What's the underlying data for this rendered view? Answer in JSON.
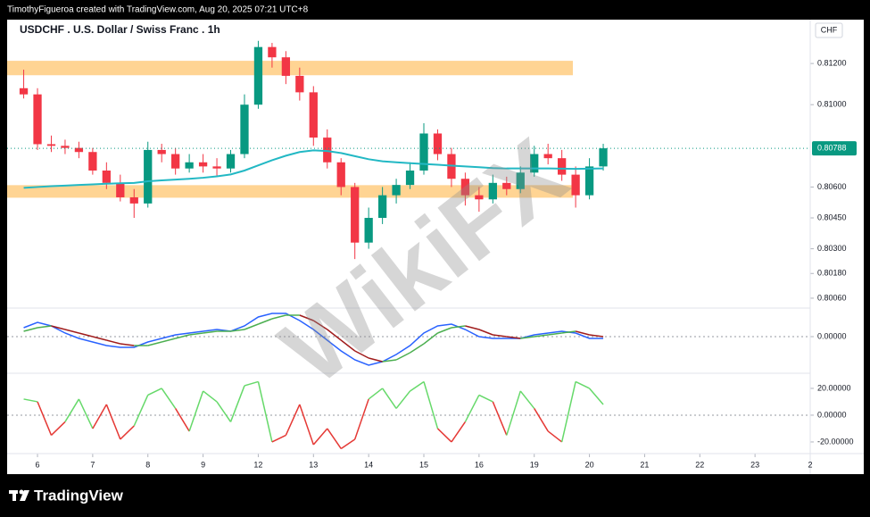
{
  "header": "TimothyFigueroa created with TradingView.com, Aug 20, 2025 07:21 UTC+8",
  "footer": "TradingView",
  "watermark": "WikiFX",
  "chart_data": [
    {
      "type": "candlestick",
      "title": "USDCHF . U.S. Dollar / Swiss Franc . 1h",
      "currency": "CHF",
      "x": [
        -1,
        0,
        1,
        2,
        3,
        4,
        5,
        6,
        7,
        8,
        9,
        10,
        11,
        12,
        13,
        14,
        15,
        16,
        17,
        18,
        19,
        20,
        21,
        22,
        23,
        24,
        25,
        26,
        27,
        28,
        29,
        30,
        31,
        32,
        33,
        34,
        35,
        36,
        37,
        38,
        39,
        40,
        41
      ],
      "open": [
        0.8108,
        0.8105,
        0.80808,
        0.808,
        0.8079,
        0.8077,
        0.8068,
        0.8062,
        0.8055,
        0.8052,
        0.8078,
        0.8076,
        0.8069,
        0.8072,
        0.807,
        0.8069,
        0.8076,
        0.81,
        0.8128,
        0.8123,
        0.8114,
        0.8106,
        0.8084,
        0.8072,
        0.806,
        0.8033,
        0.8045,
        0.8056,
        0.8061,
        0.8068,
        0.8086,
        0.8076,
        0.8064,
        0.8056,
        0.8054,
        0.8062,
        0.8059,
        0.8067,
        0.8076,
        0.8074,
        0.8066,
        0.8056,
        0.807
      ],
      "high": [
        0.8117,
        0.8108,
        0.8085,
        0.8083,
        0.8082,
        0.8079,
        0.8072,
        0.8066,
        0.8059,
        0.8082,
        0.8081,
        0.8079,
        0.8076,
        0.8076,
        0.8074,
        0.8078,
        0.8105,
        0.8131,
        0.813,
        0.8126,
        0.8118,
        0.8109,
        0.8088,
        0.8074,
        0.8062,
        0.805,
        0.806,
        0.8064,
        0.8072,
        0.8091,
        0.8088,
        0.8079,
        0.8067,
        0.806,
        0.8066,
        0.8065,
        0.807,
        0.808,
        0.8081,
        0.8078,
        0.807,
        0.8074,
        0.8081
      ],
      "low": [
        0.8103,
        0.8078,
        0.8077,
        0.8076,
        0.8074,
        0.8066,
        0.8059,
        0.8053,
        0.8045,
        0.805,
        0.8072,
        0.8066,
        0.8067,
        0.8067,
        0.8065,
        0.8067,
        0.8074,
        0.8098,
        0.8118,
        0.811,
        0.8102,
        0.808,
        0.8069,
        0.8056,
        0.8025,
        0.803,
        0.8042,
        0.8052,
        0.8059,
        0.8066,
        0.8073,
        0.806,
        0.8051,
        0.8048,
        0.8052,
        0.8056,
        0.8057,
        0.8065,
        0.8071,
        0.8063,
        0.805,
        0.8054,
        0.8068
      ],
      "close": [
        0.8105,
        0.80808,
        0.808,
        0.8079,
        0.8077,
        0.8068,
        0.8062,
        0.8055,
        0.8052,
        0.8078,
        0.8076,
        0.8069,
        0.8072,
        0.807,
        0.8069,
        0.8076,
        0.81,
        0.8128,
        0.8123,
        0.8114,
        0.8106,
        0.8084,
        0.8072,
        0.806,
        0.8033,
        0.8045,
        0.8056,
        0.8061,
        0.8068,
        0.8086,
        0.8076,
        0.8064,
        0.8056,
        0.8054,
        0.8062,
        0.8059,
        0.8067,
        0.8076,
        0.8074,
        0.8066,
        0.8056,
        0.807,
        0.80788
      ],
      "up_color": "#089981",
      "down_color": "#f23645",
      "moving_average": {
        "color": "#22b8c4",
        "values": [
          0.80596,
          0.806,
          0.80604,
          0.80607,
          0.8061,
          0.80613,
          0.80616,
          0.80618,
          0.8062,
          0.80628,
          0.80632,
          0.80636,
          0.8064,
          0.80645,
          0.80652,
          0.80661,
          0.8068,
          0.80705,
          0.8073,
          0.80752,
          0.8077,
          0.80778,
          0.80775,
          0.80765,
          0.8075,
          0.80735,
          0.80725,
          0.8072,
          0.80716,
          0.80712,
          0.80708,
          0.80704,
          0.807,
          0.80696,
          0.80692,
          0.8069,
          0.8069,
          0.8069,
          0.8069,
          0.80689,
          0.80688,
          0.80689,
          0.8069
        ]
      },
      "zones": [
        {
          "low": 0.81143,
          "high": 0.81213,
          "to": 38.8
        },
        {
          "low": 0.80548,
          "high": 0.80609,
          "to": 38.8
        }
      ],
      "zone_color": "#ffcc80",
      "last_price": 0.80788,
      "last_price_color": "#089981",
      "xlim": [
        -2.2,
        56
      ],
      "ylim": [
        0.80012,
        0.81413
      ],
      "yticks": [
        {
          "value": 0.812,
          "label": "0.81200"
        },
        {
          "value": 0.81,
          "label": "0.81000"
        },
        {
          "value": 0.806,
          "label": "0.80600"
        },
        {
          "value": 0.8045,
          "label": "0.80450"
        },
        {
          "value": 0.803,
          "label": "0.80300"
        },
        {
          "value": 0.8018,
          "label": "0.80180"
        },
        {
          "value": 0.8006,
          "label": "0.80060"
        }
      ]
    },
    {
      "type": "line",
      "x": [
        -1,
        0,
        1,
        2,
        3,
        4,
        5,
        6,
        7,
        8,
        9,
        10,
        11,
        12,
        13,
        14,
        15,
        16,
        17,
        18,
        19,
        20,
        21,
        22,
        23,
        24,
        25,
        26,
        27,
        28,
        29,
        30,
        31,
        32,
        33,
        34,
        35,
        36,
        37,
        38,
        39,
        40,
        41
      ],
      "series": [
        {
          "color": "#2962ff",
          "values": [
            0.0005,
            0.0008,
            0.0006,
            0.0002,
            -0.0001,
            -0.0003,
            -0.0005,
            -0.0006,
            -0.0006,
            -0.0003,
            -0.0001,
            0.0001,
            0.0002,
            0.0003,
            0.0004,
            0.0003,
            0.0006,
            0.0011,
            0.0013,
            0.0013,
            0.0009,
            0.0004,
            -0.0002,
            -0.0008,
            -0.0013,
            -0.0016,
            -0.0014,
            -0.001,
            -0.0005,
            0.0002,
            0.0006,
            0.0007,
            0.0004,
            0,
            -0.0001,
            -0.0001,
            -0.0001,
            0.0001,
            0.0002,
            0.0003,
            0.0002,
            -0.0001,
            -0.0001
          ]
        },
        {
          "up_color": "#4caf50",
          "down_color": "#a01c1c",
          "color_by": "slope",
          "values": [
            0.0003,
            0.0005,
            0.0006,
            0.0004,
            0.0002,
            0,
            -0.0002,
            -0.0004,
            -0.0005,
            -0.0005,
            -0.0003,
            -0.0001,
            0.0001,
            0.0002,
            0.0003,
            0.0003,
            0.0004,
            0.0007,
            0.001,
            0.0012,
            0.0012,
            0.0009,
            0.0004,
            -0.0002,
            -0.0008,
            -0.0012,
            -0.0014,
            -0.0013,
            -0.0009,
            -0.0004,
            0.0002,
            0.0005,
            0.0006,
            0.0004,
            0.0001,
            0,
            -0.0001,
            0,
            0.0001,
            0.0002,
            0.0003,
            0.0001,
            0
          ]
        }
      ],
      "xlim": [
        -2.2,
        56
      ],
      "ylim": [
        -0.00205,
        0.0016
      ],
      "yticks": [
        {
          "value": 0,
          "label": "0.00000"
        }
      ],
      "zero_line": true
    },
    {
      "type": "line",
      "x": [
        -1,
        0,
        1,
        2,
        3,
        4,
        5,
        6,
        7,
        8,
        9,
        10,
        11,
        12,
        13,
        14,
        15,
        16,
        17,
        18,
        19,
        20,
        21,
        22,
        23,
        24,
        25,
        26,
        27,
        28,
        29,
        30,
        31,
        32,
        33,
        34,
        35,
        36,
        37,
        38,
        39,
        40,
        41
      ],
      "series": [
        {
          "up_color": "#66d96a",
          "down_color": "#e53935",
          "color_by": "sign",
          "values": [
            12,
            10,
            -15,
            -5,
            12,
            -10,
            8,
            -18,
            -8,
            15,
            20,
            5,
            -12,
            18,
            10,
            -5,
            22,
            25,
            -20,
            -15,
            8,
            -22,
            -10,
            -25,
            -18,
            12,
            20,
            5,
            18,
            25,
            -10,
            -20,
            -5,
            15,
            10,
            -15,
            18,
            5,
            -12,
            -20,
            25,
            20,
            8
          ]
        }
      ],
      "xlim": [
        -2.2,
        56
      ],
      "ylim": [
        -28.7,
        31.3
      ],
      "yticks": [
        {
          "value": 20,
          "label": "20.00000"
        },
        {
          "value": 0,
          "label": "0.00000"
        },
        {
          "value": -20,
          "label": "-20.00000"
        }
      ],
      "zero_line": true,
      "xticks": [
        {
          "value": 0,
          "label": "6"
        },
        {
          "value": 4,
          "label": "7"
        },
        {
          "value": 8,
          "label": "8"
        },
        {
          "value": 12,
          "label": "9"
        },
        {
          "value": 16,
          "label": "12"
        },
        {
          "value": 20,
          "label": "13"
        },
        {
          "value": 24,
          "label": "14"
        },
        {
          "value": 28,
          "label": "15"
        },
        {
          "value": 32,
          "label": "16"
        },
        {
          "value": 36,
          "label": "19"
        },
        {
          "value": 40,
          "label": "20"
        },
        {
          "value": 44,
          "label": "21"
        },
        {
          "value": 48,
          "label": "22"
        },
        {
          "value": 52,
          "label": "23"
        },
        {
          "value": 56,
          "label": "2"
        }
      ]
    }
  ]
}
